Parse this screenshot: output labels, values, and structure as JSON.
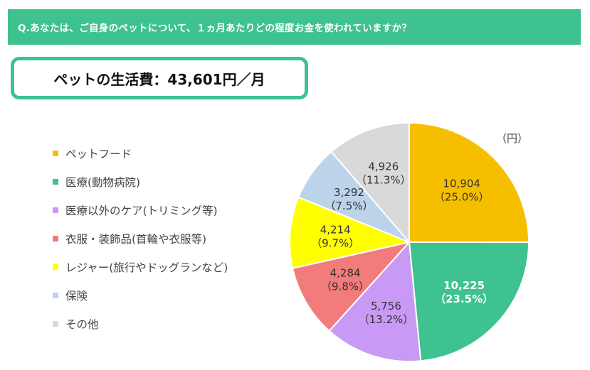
{
  "header": {
    "question": "Q.あなたは、ご自身のペットについて、１ヵ月あたりどの程度お金を使われていますか？"
  },
  "summary": {
    "text": "ペットの生活費：43,601円／月"
  },
  "unit_label": "（円）",
  "colors": {
    "accent": "#3ec28f",
    "slices": [
      "#f5bf00",
      "#3ec28f",
      "#c99af5",
      "#f27b7b",
      "#ffff00",
      "#bcd4ea",
      "#d9d9d9"
    ]
  },
  "chart_data": {
    "type": "pie",
    "title": "ペットの生活費：43,601円／月",
    "unit": "円",
    "categories": [
      "ペットフード",
      "医療(動物病院)",
      "医療以外のケア(トリミング等)",
      "衣服・装飾品(首輪や衣服等)",
      "レジャー(旅行やドッグランなど)",
      "保険",
      "その他"
    ],
    "values": [
      10904,
      10225,
      5756,
      4284,
      4214,
      3292,
      4926
    ],
    "value_labels": [
      "10,904",
      "10,225",
      "5,756",
      "4,284",
      "4,214",
      "3,292",
      "4,926"
    ],
    "percent_labels": [
      "（25.0%）",
      "（23.5%）",
      "（13.2%）",
      "（9.8%）",
      "（9.7%）",
      "（7.5%）",
      "（11.3%）"
    ],
    "legend_position": "left"
  }
}
